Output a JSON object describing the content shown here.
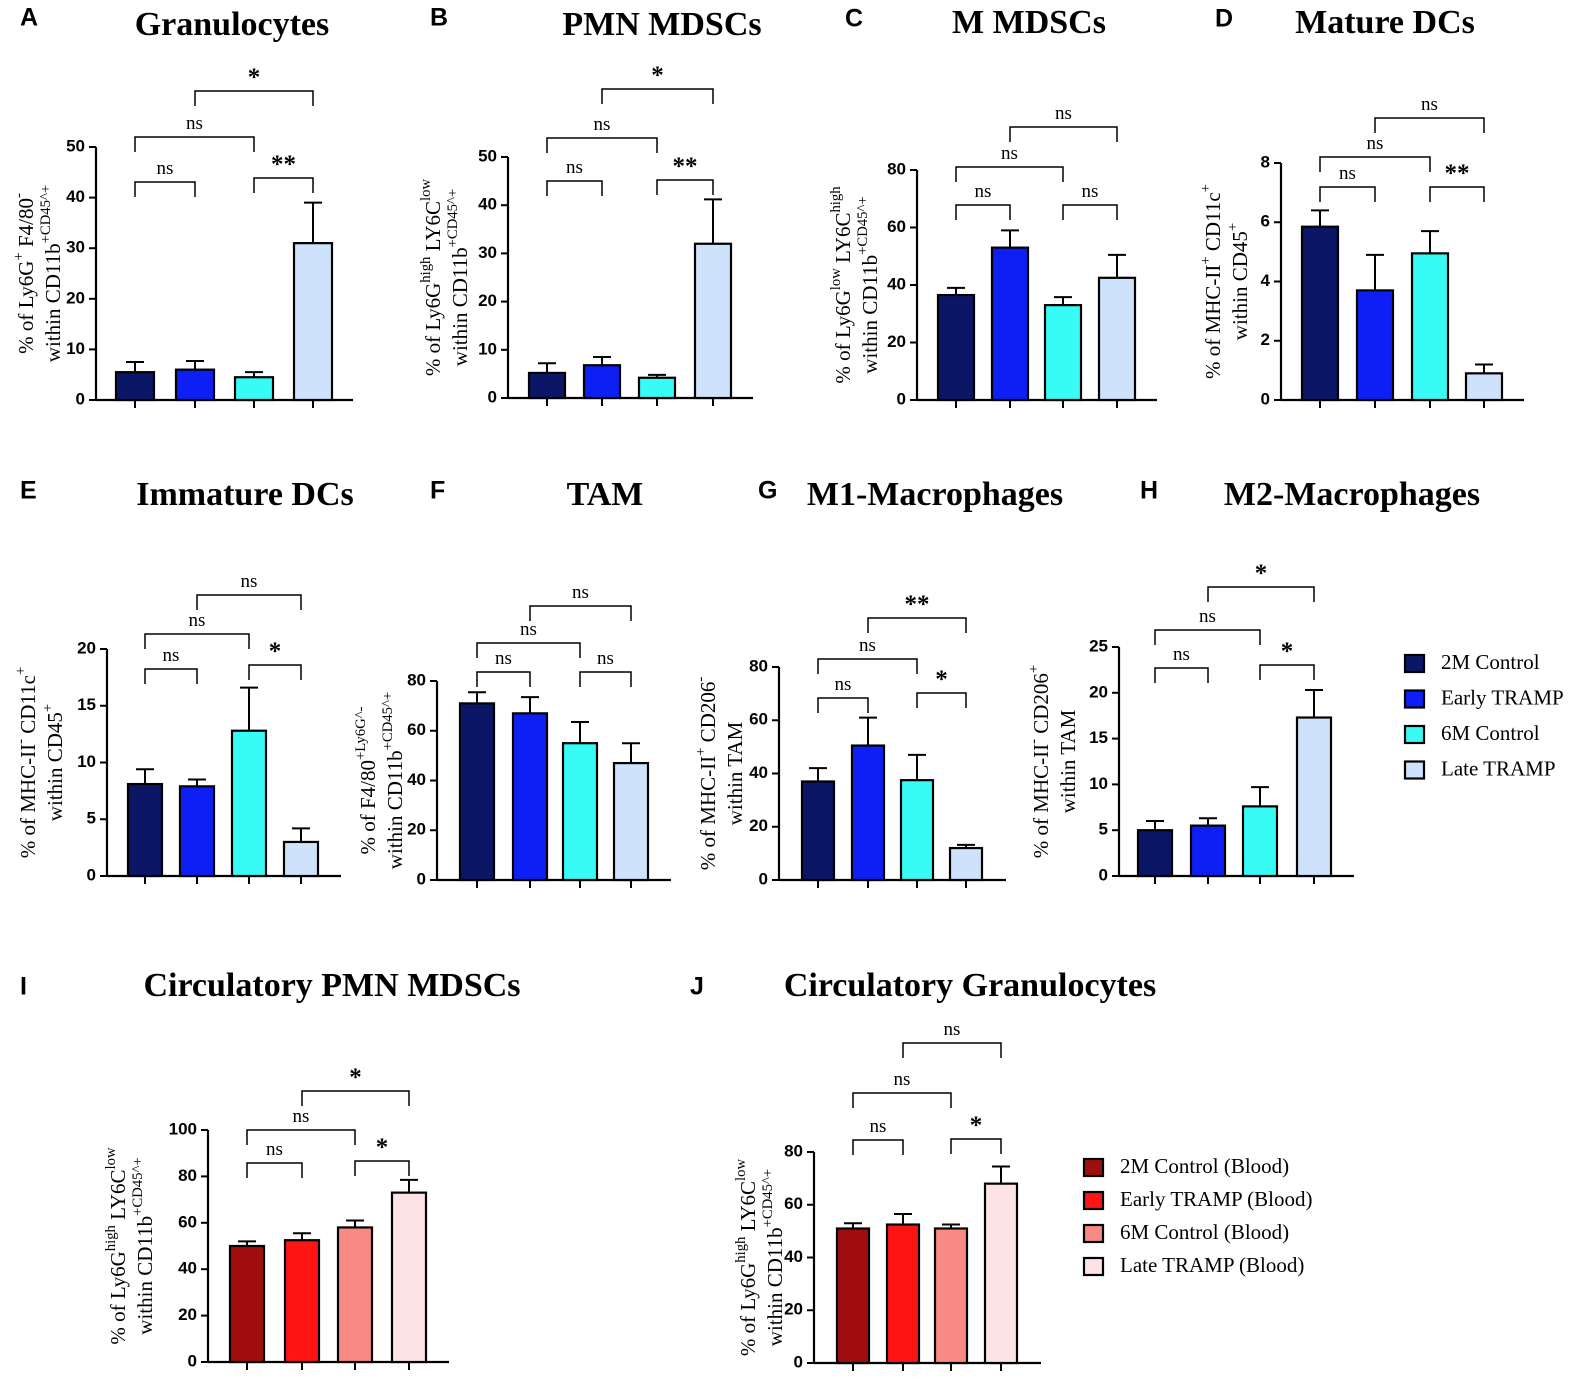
{
  "colors": {
    "2M Control": "#0b1766",
    "Early TRAMP": "#0d1ff5",
    "6M Control": "#37fbf4",
    "Late TRAMP": "#cfe2fb",
    "2M Control (Blood)": "#a00d0f",
    "Early TRAMP (Blood)": "#ff1313",
    "6M Control (Blood)": "#f98985",
    "Late TRAMP (Blood)": "#fde3e6"
  },
  "legend_tumor": {
    "items": [
      "2M Control",
      "Early TRAMP",
      "6M Control",
      "Late TRAMP"
    ]
  },
  "legend_blood": {
    "items": [
      "2M Control (Blood)",
      "Early TRAMP (Blood)",
      "6M Control (Blood)",
      "Late TRAMP (Blood)"
    ]
  },
  "chart_data": [
    {
      "panel": "A",
      "type": "bar",
      "title": "Granulocytes",
      "ylabel": [
        "% of Ly6G^+ F4/80^-",
        "within CD11b^+CD45^+"
      ],
      "categories": [
        "2M Control",
        "Early TRAMP",
        "6M Control",
        "Late TRAMP"
      ],
      "values": [
        5.5,
        6.0,
        4.5,
        31
      ],
      "errors": [
        2.0,
        1.7,
        1.0,
        8.0
      ],
      "ylim": [
        0,
        50
      ],
      "yticks": [
        0,
        10,
        20,
        30,
        40,
        50
      ],
      "comparisons": [
        {
          "a": 0,
          "b": 1,
          "label": "ns"
        },
        {
          "a": 2,
          "b": 3,
          "label": "**"
        },
        {
          "a": 0,
          "b": 2,
          "label": "ns"
        },
        {
          "a": 1,
          "b": 3,
          "label": "*"
        }
      ]
    },
    {
      "panel": "B",
      "type": "bar",
      "title": "PMN MDSCs",
      "ylabel": [
        "% of Ly6G^high LY6C^low",
        "within CD11b^+CD45^+"
      ],
      "categories": [
        "2M Control",
        "Early TRAMP",
        "6M Control",
        "Late TRAMP"
      ],
      "values": [
        5.2,
        6.8,
        4.2,
        32
      ],
      "errors": [
        2.0,
        1.7,
        0.6,
        9.2
      ],
      "ylim": [
        0,
        50
      ],
      "yticks": [
        0,
        10,
        20,
        30,
        40,
        50
      ],
      "comparisons": [
        {
          "a": 0,
          "b": 1,
          "label": "ns"
        },
        {
          "a": 2,
          "b": 3,
          "label": "**"
        },
        {
          "a": 0,
          "b": 2,
          "label": "ns"
        },
        {
          "a": 1,
          "b": 3,
          "label": "*"
        }
      ]
    },
    {
      "panel": "C",
      "type": "bar",
      "title": "M MDSCs",
      "ylabel": [
        "% of Ly6G^low LY6C^high",
        "within CD11b^+CD45^+"
      ],
      "categories": [
        "2M Control",
        "Early TRAMP",
        "6M Control",
        "Late TRAMP"
      ],
      "values": [
        36.5,
        53,
        33,
        42.5
      ],
      "errors": [
        2.5,
        6.0,
        2.8,
        8.0
      ],
      "ylim": [
        0,
        80
      ],
      "yticks": [
        0,
        20,
        40,
        60,
        80
      ],
      "comparisons": [
        {
          "a": 0,
          "b": 1,
          "label": "ns"
        },
        {
          "a": 2,
          "b": 3,
          "label": "ns"
        },
        {
          "a": 0,
          "b": 2,
          "label": "ns"
        },
        {
          "a": 1,
          "b": 3,
          "label": "ns"
        }
      ]
    },
    {
      "panel": "D",
      "type": "bar",
      "title": "Mature  DCs",
      "ylabel": [
        "% of MHC-II^+ CD11c^+",
        "within CD45^+"
      ],
      "categories": [
        "2M Control",
        "Early TRAMP",
        "6M Control",
        "Late TRAMP"
      ],
      "values": [
        5.85,
        3.7,
        4.95,
        0.9
      ],
      "errors": [
        0.55,
        1.2,
        0.75,
        0.3
      ],
      "ylim": [
        0,
        8
      ],
      "yticks": [
        0,
        2,
        4,
        6,
        8
      ],
      "comparisons": [
        {
          "a": 0,
          "b": 1,
          "label": "ns"
        },
        {
          "a": 2,
          "b": 3,
          "label": "**"
        },
        {
          "a": 0,
          "b": 2,
          "label": "ns"
        },
        {
          "a": 1,
          "b": 3,
          "label": "ns"
        }
      ]
    },
    {
      "panel": "E",
      "type": "bar",
      "title": "Immature  DCs",
      "ylabel": [
        "% of MHC-II^- CD11c^+",
        "within CD45^+"
      ],
      "categories": [
        "2M Control",
        "Early TRAMP",
        "6M Control",
        "Late TRAMP"
      ],
      "values": [
        8.1,
        7.9,
        12.8,
        3.0
      ],
      "errors": [
        1.3,
        0.6,
        3.8,
        1.2
      ],
      "ylim": [
        0,
        20
      ],
      "yticks": [
        0,
        5,
        10,
        15,
        20
      ],
      "comparisons": [
        {
          "a": 0,
          "b": 1,
          "label": "ns"
        },
        {
          "a": 2,
          "b": 3,
          "label": "*"
        },
        {
          "a": 0,
          "b": 2,
          "label": "ns"
        },
        {
          "a": 1,
          "b": 3,
          "label": "ns"
        }
      ]
    },
    {
      "panel": "F",
      "type": "bar",
      "title": "TAM",
      "ylabel": [
        "% of F4/80^+Ly6G^-",
        "within CD11b^+CD45^+"
      ],
      "categories": [
        "2M Control",
        "Early TRAMP",
        "6M Control",
        "Late TRAMP"
      ],
      "values": [
        71,
        67,
        55,
        47
      ],
      "errors": [
        4.5,
        6.5,
        8.5,
        8.0
      ],
      "ylim": [
        0,
        80
      ],
      "yticks": [
        0,
        20,
        40,
        60,
        80
      ],
      "comparisons": [
        {
          "a": 0,
          "b": 1,
          "label": "ns"
        },
        {
          "a": 2,
          "b": 3,
          "label": "ns"
        },
        {
          "a": 0,
          "b": 2,
          "label": "ns"
        },
        {
          "a": 1,
          "b": 3,
          "label": "ns"
        }
      ]
    },
    {
      "panel": "G",
      "type": "bar",
      "title": "M1-Macrophages",
      "ylabel": [
        "% of MHC-II^+ CD206^-",
        "within TAM"
      ],
      "categories": [
        "2M Control",
        "Early TRAMP",
        "6M Control",
        "Late TRAMP"
      ],
      "values": [
        37,
        50.5,
        37.5,
        12
      ],
      "errors": [
        5.0,
        10.5,
        9.5,
        1.2
      ],
      "ylim": [
        0,
        80
      ],
      "yticks": [
        0,
        20,
        40,
        60,
        80
      ],
      "comparisons": [
        {
          "a": 0,
          "b": 1,
          "label": "ns"
        },
        {
          "a": 2,
          "b": 3,
          "label": "*"
        },
        {
          "a": 0,
          "b": 2,
          "label": "ns"
        },
        {
          "a": 1,
          "b": 3,
          "label": "**"
        }
      ]
    },
    {
      "panel": "H",
      "type": "bar",
      "title": "M2-Macrophages",
      "ylabel": [
        "% of MHC-II^- CD206^+",
        "within TAM"
      ],
      "categories": [
        "2M Control",
        "Early TRAMP",
        "6M Control",
        "Late TRAMP"
      ],
      "values": [
        5.0,
        5.5,
        7.6,
        17.3
      ],
      "errors": [
        1.0,
        0.8,
        2.1,
        3.0
      ],
      "ylim": [
        0,
        25
      ],
      "yticks": [
        0,
        5,
        10,
        15,
        20,
        25
      ],
      "comparisons": [
        {
          "a": 0,
          "b": 1,
          "label": "ns"
        },
        {
          "a": 2,
          "b": 3,
          "label": "*"
        },
        {
          "a": 0,
          "b": 2,
          "label": "ns"
        },
        {
          "a": 1,
          "b": 3,
          "label": "*"
        }
      ]
    },
    {
      "panel": "I",
      "type": "bar",
      "title": "Circulatory PMN MDSCs",
      "ylabel": [
        "% of Ly6G^high LY6C^low",
        "within CD11b^+CD45^+"
      ],
      "categories": [
        "2M Control (Blood)",
        "Early TRAMP (Blood)",
        "6M Control (Blood)",
        "Late TRAMP (Blood)"
      ],
      "values": [
        50,
        52.5,
        58,
        73
      ],
      "errors": [
        2.0,
        3.0,
        3.0,
        5.5
      ],
      "ylim": [
        0,
        100
      ],
      "yticks": [
        0,
        20,
        40,
        60,
        80,
        100
      ],
      "comparisons": [
        {
          "a": 0,
          "b": 1,
          "label": "ns"
        },
        {
          "a": 2,
          "b": 3,
          "label": "*"
        },
        {
          "a": 0,
          "b": 2,
          "label": "ns"
        },
        {
          "a": 1,
          "b": 3,
          "label": "*"
        }
      ]
    },
    {
      "panel": "J",
      "type": "bar",
      "title": "Circulatory  Granulocytes",
      "ylabel": [
        "% of Ly6G^high LY6C^low",
        "within CD11b^+CD45^+"
      ],
      "categories": [
        "2M Control (Blood)",
        "Early TRAMP (Blood)",
        "6M Control (Blood)",
        "Late TRAMP (Blood)"
      ],
      "values": [
        51,
        52.5,
        51,
        68
      ],
      "errors": [
        2.0,
        4.0,
        1.5,
        6.5
      ],
      "ylim": [
        0,
        80
      ],
      "yticks": [
        0,
        20,
        40,
        60,
        80
      ],
      "comparisons": [
        {
          "a": 0,
          "b": 1,
          "label": "ns"
        },
        {
          "a": 2,
          "b": 3,
          "label": "*"
        },
        {
          "a": 0,
          "b": 2,
          "label": "ns"
        },
        {
          "a": 1,
          "b": 3,
          "label": "ns"
        }
      ]
    }
  ]
}
